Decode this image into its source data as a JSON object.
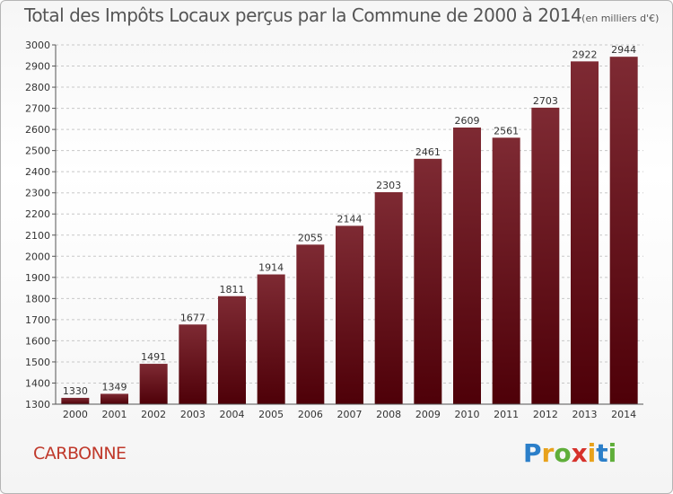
{
  "title": "Total des Impôts Locaux perçus par la Commune de 2000 à 2014",
  "unit": "(en milliers d'€)",
  "commune": "CARBONNE",
  "brand": [
    "P",
    "r",
    "o",
    "x",
    "i",
    "t",
    "i"
  ],
  "brand_colors": [
    "#2b7fc9",
    "#e8a21c",
    "#5fae3a",
    "#d6312b",
    "#e8a21c",
    "#2b7fc9",
    "#5fae3a"
  ],
  "colors": {
    "bar_top": "#7e2a33",
    "bar_bottom": "#4e0008",
    "axis": "#555555",
    "grid": "#c8c8c8"
  },
  "chart_data": {
    "type": "bar",
    "title": "Total des Impôts Locaux perçus par la Commune de 2000 à 2014",
    "xlabel": "",
    "ylabel": "",
    "categories": [
      "2000",
      "2001",
      "2002",
      "2003",
      "2004",
      "2005",
      "2006",
      "2007",
      "2008",
      "2009",
      "2010",
      "2011",
      "2012",
      "2013",
      "2014"
    ],
    "values": [
      1330,
      1349,
      1491,
      1677,
      1811,
      1914,
      2055,
      2144,
      2303,
      2461,
      2609,
      2561,
      2703,
      2922,
      2944
    ],
    "ylim": [
      1300,
      3000
    ],
    "yticks": [
      1300,
      1400,
      1500,
      1600,
      1700,
      1800,
      1900,
      2000,
      2100,
      2200,
      2300,
      2400,
      2500,
      2600,
      2700,
      2800,
      2900,
      3000
    ],
    "grid": true,
    "data_labels": true
  }
}
